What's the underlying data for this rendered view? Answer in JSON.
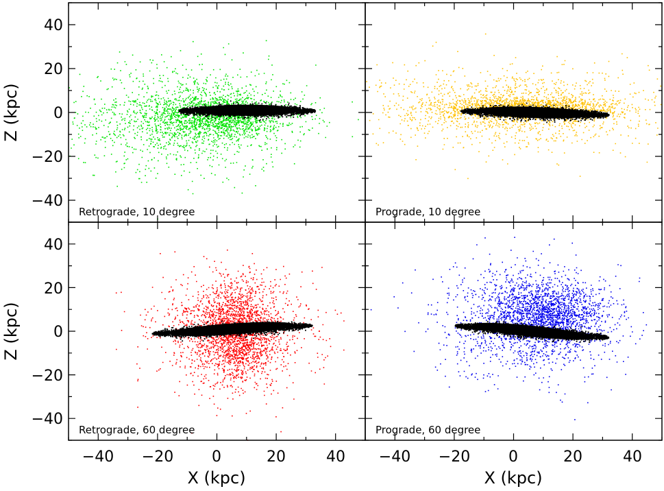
{
  "figure": {
    "xlabel": "X (kpc)",
    "ylabel": "Z (kpc)",
    "xlim": [
      -50,
      50
    ],
    "ylim": [
      -50,
      50
    ],
    "xticks": [
      -40,
      -20,
      0,
      20,
      40
    ],
    "yticks": [
      -40,
      -20,
      0,
      20,
      40
    ],
    "tick_label_text": {
      "-40": "−40",
      "-20": "−20",
      "0": "0",
      "20": "20",
      "40": "40"
    }
  },
  "chart_data": [
    {
      "type": "scatter",
      "label": "Retrograde, 10 degree",
      "grid": "2x2 top-left",
      "colors": {
        "satellite": "#00e400",
        "disk": "#000000"
      },
      "xlim": [
        -50,
        50
      ],
      "ylim": [
        -50,
        50
      ],
      "satellite_distribution": {
        "background_center": [
          -10,
          -2
        ],
        "background_spread": [
          40,
          24
        ],
        "inner_center": [
          0,
          -2
        ],
        "inner_spread": [
          22,
          10
        ]
      },
      "disk": {
        "x_range": [
          -14,
          33
        ],
        "center": [
          10,
          1
        ],
        "half_length": 23,
        "half_thickness": 3,
        "tilt_deg": 0
      }
    },
    {
      "type": "scatter",
      "label": "Prograde, 10 degree",
      "grid": "2x2 top-right",
      "colors": {
        "satellite": "#ffc000",
        "disk": "#000000"
      },
      "xlim": [
        -50,
        50
      ],
      "ylim": [
        -50,
        50
      ],
      "satellite_distribution": {
        "background_center": [
          0,
          2
        ],
        "background_spread": [
          45,
          18
        ],
        "inner_center": [
          5,
          2
        ],
        "inner_spread": [
          30,
          5
        ]
      },
      "disk": {
        "x_range": [
          -18,
          32
        ],
        "center": [
          7,
          0
        ],
        "half_length": 25,
        "half_thickness": 3,
        "tilt_deg": -2
      }
    },
    {
      "type": "scatter",
      "label": "Retrograde, 60 degree",
      "grid": "2x2 bottom-left",
      "colors": {
        "satellite": "#ff0000",
        "disk": "#000000"
      },
      "xlim": [
        -50,
        50
      ],
      "ylim": [
        -50,
        50
      ],
      "satellite_distribution": {
        "background_center": [
          5,
          0
        ],
        "background_spread": [
          25,
          25
        ],
        "inner_center": [
          7,
          0
        ],
        "inner_spread": [
          12,
          22
        ]
      },
      "disk": {
        "x_range": [
          -22,
          32
        ],
        "center": [
          5,
          1
        ],
        "half_length": 27,
        "half_thickness": 3,
        "tilt_deg": 4
      }
    },
    {
      "type": "scatter",
      "label": "Prograde, 60 degree",
      "grid": "2x2 bottom-right",
      "colors": {
        "satellite": "#0000ee",
        "disk": "#000000"
      },
      "xlim": [
        -50,
        50
      ],
      "ylim": [
        -50,
        50
      ],
      "satellite_distribution": {
        "background_center": [
          5,
          5
        ],
        "background_spread": [
          30,
          25
        ],
        "inner_center": [
          12,
          8
        ],
        "inner_spread": [
          18,
          14
        ]
      },
      "disk": {
        "x_range": [
          -20,
          33
        ],
        "center": [
          6,
          0
        ],
        "half_length": 26,
        "half_thickness": 3,
        "tilt_deg": -6
      }
    }
  ]
}
